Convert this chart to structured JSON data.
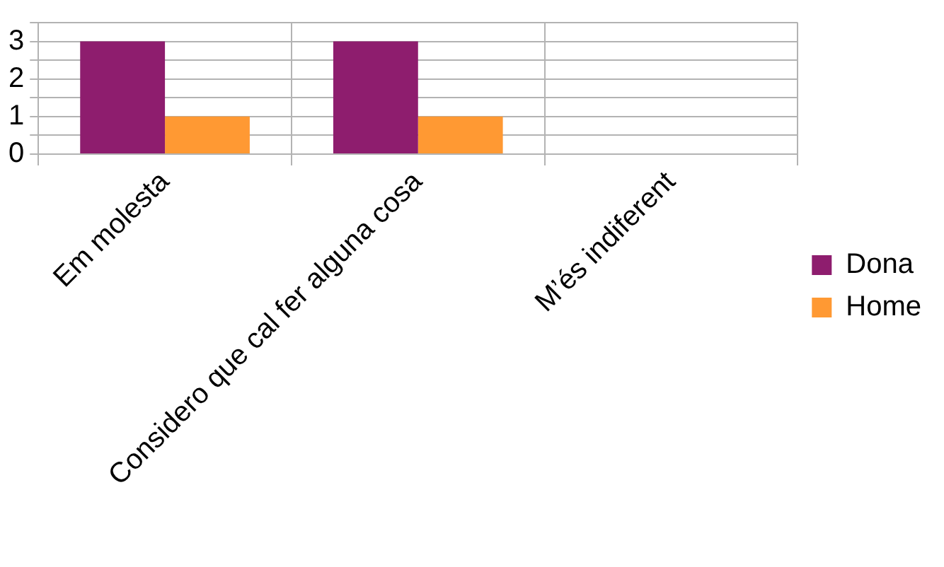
{
  "chart_data": {
    "type": "bar",
    "categories": [
      "Em molesta",
      "Considero que cal fer alguna cosa",
      "M’és indiferent"
    ],
    "series": [
      {
        "name": "Dona",
        "color": "#8e1d6e",
        "values": [
          3,
          3,
          0
        ]
      },
      {
        "name": "Home",
        "color": "#ff9933",
        "values": [
          1,
          1,
          0
        ]
      }
    ],
    "ylim": [
      0,
      3.5
    ],
    "yticks": [
      0,
      {
        "value": 0.5,
        "label": null
      },
      1,
      {
        "value": 1.5,
        "label": null
      },
      2,
      {
        "value": 2.5,
        "label": null
      },
      3,
      {
        "value": 3.5,
        "label": null
      }
    ],
    "grid": true,
    "legend": "right"
  }
}
